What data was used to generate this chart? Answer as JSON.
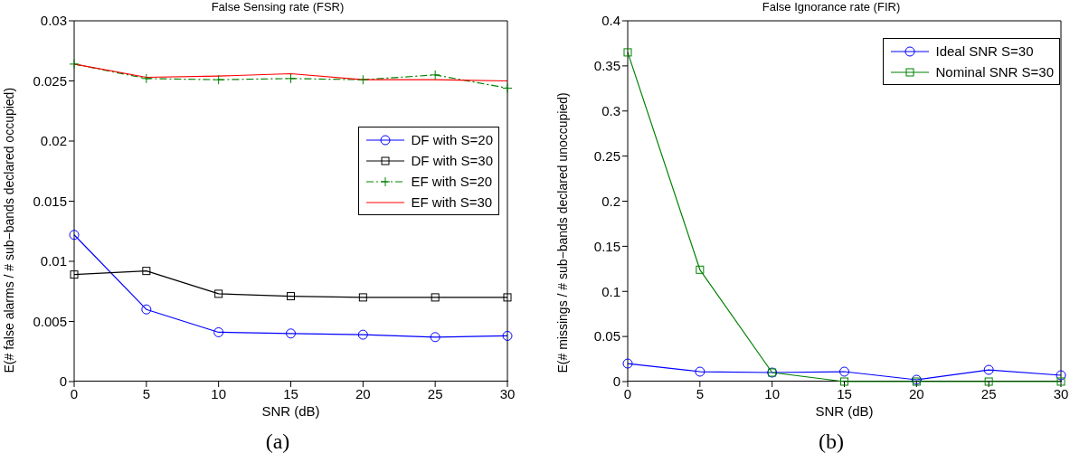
{
  "chart_data": [
    {
      "type": "line",
      "title": "False Sensing rate (FSR)",
      "xlabel": "SNR (dB)",
      "ylabel": "E(# false alarms / # sub−bands declared occupied)",
      "x": [
        0,
        5,
        10,
        15,
        20,
        25,
        30
      ],
      "xlim": [
        0,
        30
      ],
      "xticks": [
        0,
        5,
        10,
        15,
        20,
        25,
        30
      ],
      "ylim": [
        0,
        0.03
      ],
      "yticks": [
        0,
        0.005,
        0.01,
        0.015,
        0.02,
        0.025,
        0.03
      ],
      "grid": false,
      "legend": "right",
      "annotations": [
        "(a)"
      ],
      "series": [
        {
          "name": "DF with S=20",
          "color": "#0000ff",
          "marker": "circle",
          "line_style": "solid",
          "values": [
            0.0122,
            0.006,
            0.0041,
            0.004,
            0.0039,
            0.0037,
            0.0038
          ]
        },
        {
          "name": "DF with S=30",
          "color": "#000000",
          "marker": "square",
          "line_style": "solid",
          "values": [
            0.0089,
            0.0092,
            0.0073,
            0.0071,
            0.007,
            0.007,
            0.007
          ]
        },
        {
          "name": "EF with S=20",
          "color": "#008000",
          "marker": "cross",
          "line_style": "dashed",
          "values": [
            0.0264,
            0.0252,
            0.0251,
            0.0252,
            0.0251,
            0.0255,
            0.0244
          ]
        },
        {
          "name": "EF with S=30",
          "color": "#ff0000",
          "marker": "none",
          "line_style": "solid",
          "values": [
            0.0264,
            0.0253,
            0.0254,
            0.0256,
            0.0251,
            0.0251,
            0.025
          ]
        }
      ]
    },
    {
      "type": "line",
      "title": "False Ignorance rate (FIR)",
      "xlabel": "SNR (dB)",
      "ylabel": "E(# missings / # sub−bands declared unoccupied)",
      "x": [
        0,
        5,
        10,
        15,
        20,
        25,
        30
      ],
      "xlim": [
        0,
        30
      ],
      "xticks": [
        0,
        5,
        10,
        15,
        20,
        25,
        30
      ],
      "ylim": [
        0,
        0.4
      ],
      "yticks": [
        0,
        0.05,
        0.1,
        0.15,
        0.2,
        0.25,
        0.3,
        0.35,
        0.4
      ],
      "grid": false,
      "legend": "top right",
      "annotations": [
        "(b)"
      ],
      "series": [
        {
          "name": "Ideal SNR S=30",
          "color": "#0000ff",
          "marker": "circle",
          "line_style": "solid",
          "values": [
            0.02,
            0.011,
            0.01,
            0.011,
            0.002,
            0.013,
            0.007
          ]
        },
        {
          "name": "Nominal SNR S=30",
          "color": "#008000",
          "marker": "square",
          "line_style": "solid",
          "values": [
            0.365,
            0.124,
            0.01,
            0,
            0,
            0,
            0
          ]
        }
      ]
    }
  ]
}
